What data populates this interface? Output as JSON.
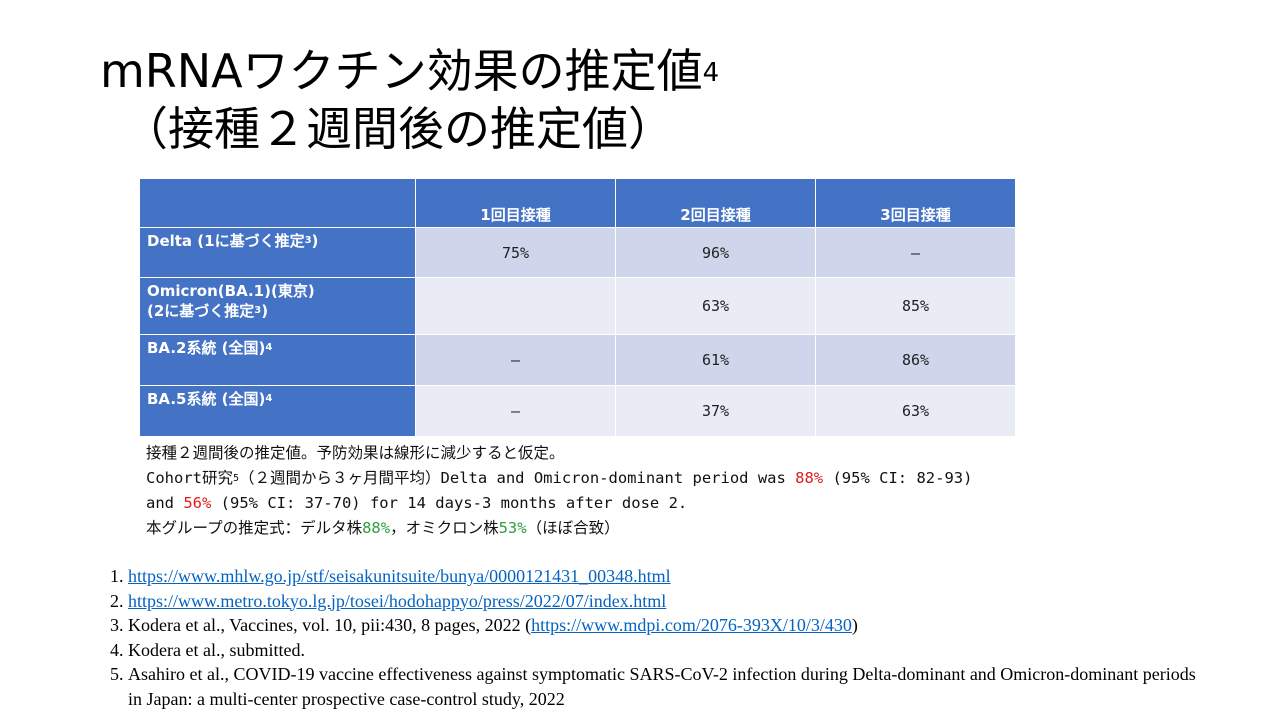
{
  "title": {
    "line1": "mRNAワクチン効果の推定値",
    "line1_sup": "4",
    "line2": "（接種２週間後の推定値）"
  },
  "table": {
    "headers": [
      "",
      "1回目接種",
      "2回目接種",
      "3回目接種"
    ],
    "rows": [
      {
        "label": "Delta (1に基づく推定",
        "label_sup": "3",
        "label_end": ")",
        "label2": "",
        "label2_sup": "",
        "label2_end": "",
        "values": [
          "75%",
          "96%",
          "–"
        ]
      },
      {
        "label": "Omicron(BA.1)(東京)",
        "label_sup": "",
        "label_end": "",
        "label2": "(2に基づく推定",
        "label2_sup": "3",
        "label2_end": ")",
        "values": [
          "",
          "63%",
          "85%"
        ]
      },
      {
        "label": "BA.2系統 (全国)",
        "label_sup": "4",
        "label_end": "",
        "label2": "",
        "label2_sup": "",
        "label2_end": "",
        "values": [
          "–",
          "61%",
          "86%"
        ]
      },
      {
        "label": "BA.5系統 (全国)",
        "label_sup": "4",
        "label_end": "",
        "label2": "",
        "label2_sup": "",
        "label2_end": "",
        "values": [
          "–",
          "37%",
          "63%"
        ]
      }
    ]
  },
  "notes": {
    "line1": "接種２週間後の推定値。予防効果は線形に減少すると仮定。",
    "line2_a": "Cohort研究",
    "line2_sup": "5",
    "line2_b": "（２週間から３ヶ月間平均）Delta and Omicron-dominant period was ",
    "line2_red": "88%",
    "line2_c": " (95% CI: 82-93)",
    "line3_a": "and ",
    "line3_red": "56%",
    "line3_b": " (95% CI: 37-70) for 14 days-3 months after dose 2.",
    "line4_a": "本グループの推定式：デルタ株",
    "line4_green1": "88%",
    "line4_b": "，オミクロン株",
    "line4_green2": "53%",
    "line4_c": "（ほぼ合致）"
  },
  "references": [
    {
      "pre": "",
      "link": "https://www.mhlw.go.jp/stf/seisakunitsuite/bunya/0000121431_00348.html",
      "post": ""
    },
    {
      "pre": "",
      "link": "https://www.metro.tokyo.lg.jp/tosei/hodohappyo/press/2022/07/index.html",
      "post": ""
    },
    {
      "pre": "Kodera et al., Vaccines, vol. 10, pii:430, 8 pages, 2022 (",
      "link": "https://www.mdpi.com/2076-393X/10/3/430",
      "post": ")"
    },
    {
      "pre": "Kodera et al., submitted.",
      "link": "",
      "post": ""
    },
    {
      "pre": "Asahiro et al., COVID-19 vaccine effectiveness against symptomatic SARS-CoV-2 infection during Delta-dominant and Omicron-dominant periods in Japan: a multi-center prospective case-control study, 2022",
      "link": "",
      "post": ""
    }
  ],
  "colors": {
    "header_bg": "#4472c4",
    "row_dark": "#cfd5ea",
    "row_light": "#e9ebf5",
    "red_text": "#e01b1b",
    "green_text": "#2e9e3e",
    "link": "#0563c1"
  }
}
